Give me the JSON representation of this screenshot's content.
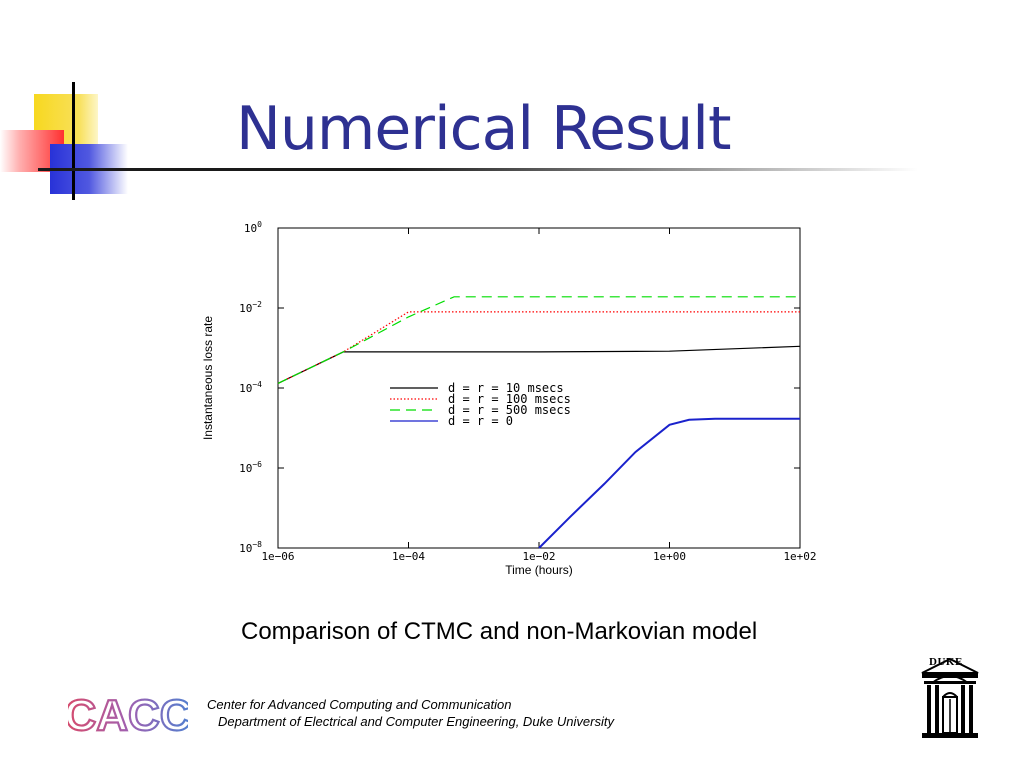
{
  "slide": {
    "title": "Numerical Result",
    "caption": "Comparison of CTMC and non-Markovian model",
    "footer_line1": "Center for Advanced Computing and Communication",
    "footer_line2": "Department of Electrical and Computer Engineering, Duke University",
    "duke_label": "DUKE",
    "cacc_logo_text": "CACC",
    "title_color": "#2e3192"
  },
  "chart_data": {
    "type": "line",
    "title": "",
    "xlabel": "Time (hours)",
    "ylabel": "Instantaneous loss rate",
    "x_scale": "log",
    "y_scale": "log",
    "xlim": [
      1e-06,
      100
    ],
    "ylim": [
      1e-08,
      1
    ],
    "x_ticks": [
      1e-06,
      0.0001,
      0.01,
      1,
      100
    ],
    "x_tick_labels": [
      "1e−06",
      "1e−04",
      "1e−02",
      "1e+00",
      "1e+02"
    ],
    "y_ticks": [
      1e-08,
      1e-06,
      0.0001,
      0.01,
      1
    ],
    "y_tick_labels": [
      {
        "base": "10",
        "exp": "−8"
      },
      {
        "base": "10",
        "exp": "−6"
      },
      {
        "base": "10",
        "exp": "−4"
      },
      {
        "base": "10",
        "exp": "−2"
      },
      {
        "base": "10",
        "exp": "0"
      }
    ],
    "grid": false,
    "legend_position": "center",
    "series": [
      {
        "name": "d = r = 10 msecs",
        "color": "#000000",
        "dash": "",
        "x": [
          1e-06,
          1e-05,
          0.01,
          1,
          100
        ],
        "y": [
          0.00013,
          0.0008,
          0.0008,
          0.00083,
          0.0011
        ]
      },
      {
        "name": "d = r = 100 msecs",
        "color": "#ff0000",
        "dash": "1.5,2",
        "x": [
          1e-06,
          1e-05,
          0.0001,
          0.01,
          1,
          100
        ],
        "y": [
          0.00013,
          0.0008,
          0.008,
          0.008,
          0.008,
          0.008
        ]
      },
      {
        "name": "d = r = 500 msecs",
        "color": "#00dd00",
        "dash": "10,6",
        "x": [
          1e-06,
          1e-05,
          0.0001,
          0.0005,
          0.01,
          1,
          100
        ],
        "y": [
          0.00013,
          0.0008,
          0.006,
          0.019,
          0.019,
          0.019,
          0.019
        ]
      },
      {
        "name": "d = r = 0",
        "color": "#1a22cc",
        "dash": "",
        "x": [
          0.01,
          0.03,
          0.1,
          0.3,
          1,
          2,
          5,
          100
        ],
        "y": [
          1e-08,
          6e-08,
          4e-07,
          2.5e-06,
          1.2e-05,
          1.6e-05,
          1.7e-05,
          1.7e-05
        ]
      }
    ]
  }
}
